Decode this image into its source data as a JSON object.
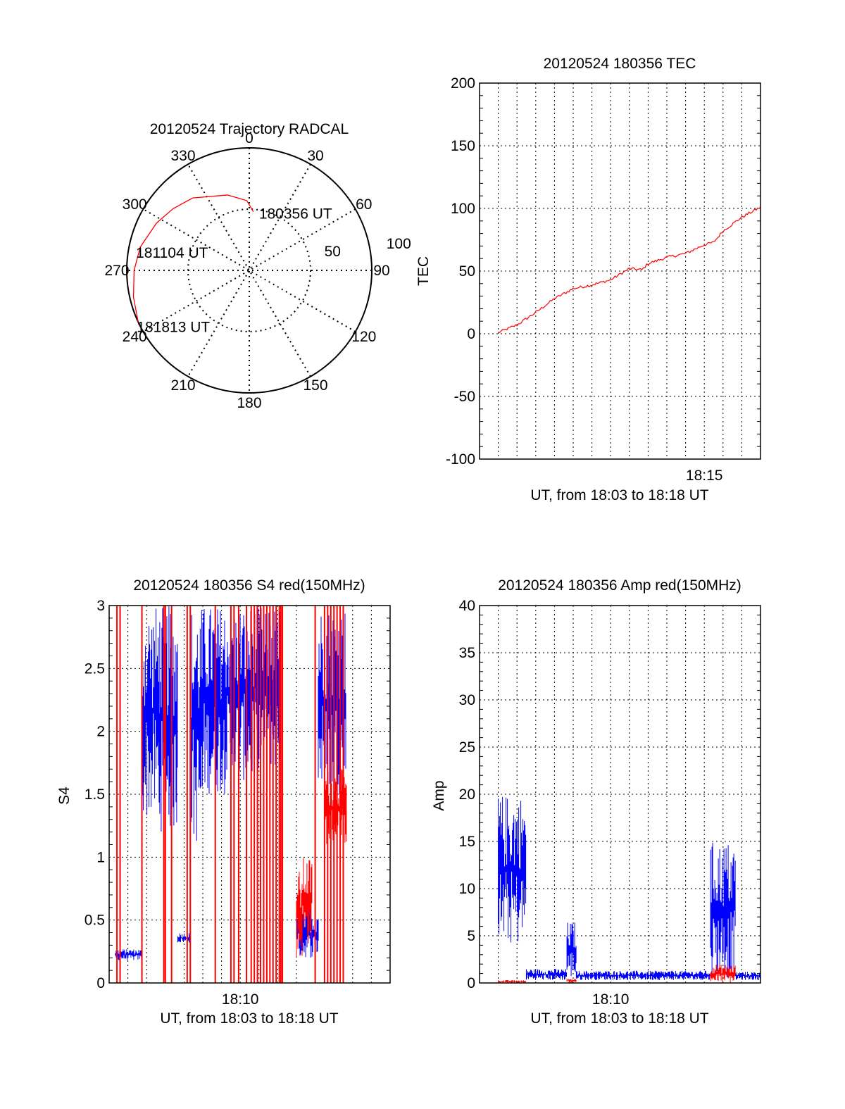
{
  "colors": {
    "red": "#ff0000",
    "blue": "#0000ff",
    "axis": "#000000",
    "grid": "#000000"
  },
  "chart_data": [
    {
      "type": "polar",
      "title": "20120524 Trajectory RADCAL",
      "azimuth_labels": [
        "0",
        "30",
        "60",
        "90",
        "120",
        "150",
        "180",
        "210",
        "240",
        "270",
        "300",
        "330"
      ],
      "elevation_labels": [
        "50",
        "100"
      ],
      "trajectory_labels": [
        "180356 UT",
        "181104 UT",
        "181813 UT"
      ],
      "trajectory": {
        "series_color": "red",
        "points": [
          [
            4,
            48
          ],
          [
            358,
            57
          ],
          [
            344,
            64
          ],
          [
            322,
            75
          ],
          [
            309,
            80
          ],
          [
            297,
            85
          ],
          [
            282,
            91
          ],
          [
            270,
            94
          ],
          [
            257,
            97
          ],
          [
            245,
            100
          ]
        ]
      }
    },
    {
      "type": "line",
      "title": "20120524 180356 TEC",
      "xlabel": "UT, from 18:03 to 18:18 UT",
      "ylabel": "TEC",
      "xlim": [
        "18:03:00",
        "18:18:00"
      ],
      "ylim": [
        -100,
        200
      ],
      "yticks": [
        "-100",
        "-50",
        "0",
        "50",
        "100",
        "150",
        "200"
      ],
      "xtick_labels": [
        {
          "t": "18:15",
          "label": "18:15"
        }
      ],
      "grid": true,
      "series": [
        {
          "color": "red",
          "points": [
            [
              "18:04:00",
              1
            ],
            [
              "18:05:00",
              7
            ],
            [
              "18:06:00",
              17
            ],
            [
              "18:07:00",
              28
            ],
            [
              "18:08:00",
              36
            ],
            [
              "18:09:00",
              39
            ],
            [
              "18:10:00",
              43
            ],
            [
              "18:11:00",
              52
            ],
            [
              "18:11:40",
              51
            ],
            [
              "18:12:00",
              56
            ],
            [
              "18:13:00",
              61
            ],
            [
              "18:14:00",
              64
            ],
            [
              "18:15:00",
              71
            ],
            [
              "18:15:30",
              73
            ],
            [
              "18:16:00",
              82
            ],
            [
              "18:17:00",
              93
            ],
            [
              "18:18:00",
              101
            ]
          ]
        }
      ]
    },
    {
      "type": "line",
      "title": "20120524 180356 S4 red(150MHz)",
      "xlabel": "UT, from 18:03 to 18:18 UT",
      "ylabel": "S4",
      "xlim": [
        "18:03:00",
        "18:18:00"
      ],
      "ylim": [
        0,
        3
      ],
      "yticks": [
        "0",
        "0.5",
        "1",
        "1.5",
        "2",
        "2.5",
        "3"
      ],
      "xtick_labels": [
        {
          "t": "18:10",
          "label": "18:10"
        }
      ],
      "grid": true,
      "series": [
        {
          "color": "blue",
          "segments": [
            {
              "start": "18:03:20",
              "end": "18:04:45",
              "low": 0.18,
              "high": 0.27
            },
            {
              "start": "18:04:45",
              "end": "18:05:40",
              "low": 1.3,
              "high": 3.0
            },
            {
              "start": "18:05:40",
              "end": "18:06:40",
              "low": 1.2,
              "high": 3.0
            },
            {
              "start": "18:06:40",
              "end": "18:07:20",
              "low": 0.32,
              "high": 0.4
            },
            {
              "start": "18:07:20",
              "end": "18:08:00",
              "low": 1.1,
              "high": 3.0
            },
            {
              "start": "18:08:00",
              "end": "18:09:10",
              "low": 1.5,
              "high": 3.0
            },
            {
              "start": "18:09:10",
              "end": "18:10:40",
              "low": 1.6,
              "high": 3.0
            },
            {
              "start": "18:10:40",
              "end": "18:12:10",
              "low": 1.7,
              "high": 3.0
            },
            {
              "start": "18:13:00",
              "end": "18:14:10",
              "low": 0.2,
              "high": 0.6
            },
            {
              "start": "18:14:10",
              "end": "18:15:40",
              "low": 1.5,
              "high": 3.0
            }
          ]
        },
        {
          "color": "red",
          "segments": [
            {
              "start": "18:13:00",
              "end": "18:13:20",
              "low": 0.2,
              "high": 0.9
            },
            {
              "start": "18:13:20",
              "end": "18:13:50",
              "low": 0.3,
              "high": 1.0
            },
            {
              "start": "18:14:30",
              "end": "18:15:40",
              "low": 1.1,
              "high": 1.7
            }
          ],
          "spikes": [
            "18:03:25",
            "18:03:35",
            "18:04:45",
            "18:05:55",
            "18:06:00",
            "18:06:20",
            "18:07:10",
            "18:07:20",
            "18:08:40",
            "18:09:30",
            "18:09:40",
            "18:09:55",
            "18:10:20",
            "18:10:35",
            "18:10:45",
            "18:10:55",
            "18:11:05",
            "18:11:15",
            "18:11:25",
            "18:11:35",
            "18:11:45",
            "18:11:55",
            "18:12:05",
            "18:12:10",
            "18:12:15",
            "18:14:00",
            "18:14:30",
            "18:14:40",
            "18:14:50",
            "18:15:00",
            "18:15:10",
            "18:15:20",
            "18:15:30"
          ]
        }
      ]
    },
    {
      "type": "line",
      "title": "20120524 180356 Amp red(150MHz)",
      "xlabel": "UT, from 18:03 to 18:18 UT",
      "ylabel": "Amp",
      "xlim": [
        "18:03:00",
        "18:18:00"
      ],
      "ylim": [
        0,
        40
      ],
      "yticks": [
        "0",
        "5",
        "10",
        "15",
        "20",
        "25",
        "30",
        "35",
        "40"
      ],
      "xtick_labels": [
        {
          "t": "18:10",
          "label": "18:10"
        }
      ],
      "grid": true,
      "series": [
        {
          "color": "blue",
          "segments": [
            {
              "start": "18:04:00",
              "end": "18:05:30",
              "low": 4,
              "high": 20
            },
            {
              "start": "18:05:30",
              "end": "18:07:40",
              "low": 0.3,
              "high": 1.5
            },
            {
              "start": "18:07:40",
              "end": "18:08:10",
              "low": 0.5,
              "high": 6.5
            },
            {
              "start": "18:08:10",
              "end": "18:15:20",
              "low": 0.3,
              "high": 1.3
            },
            {
              "start": "18:15:20",
              "end": "18:16:40",
              "low": 0.5,
              "high": 15
            },
            {
              "start": "18:16:40",
              "end": "18:18:00",
              "low": 0.3,
              "high": 1.2
            }
          ]
        },
        {
          "color": "red",
          "segments": [
            {
              "start": "18:04:00",
              "end": "18:05:30",
              "low": 0.0,
              "high": 0.3
            },
            {
              "start": "18:07:40",
              "end": "18:08:10",
              "low": 0.0,
              "high": 0.5
            },
            {
              "start": "18:15:20",
              "end": "18:16:40",
              "low": 0.0,
              "high": 2.0
            }
          ]
        }
      ]
    }
  ]
}
